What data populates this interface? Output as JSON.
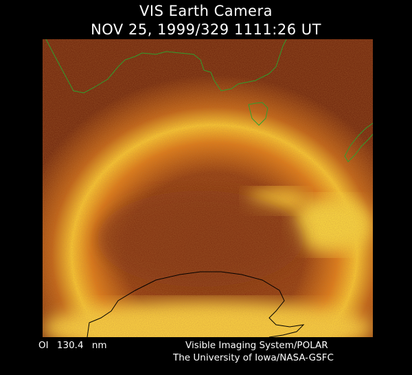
{
  "header": {
    "title": "VIS Earth Camera",
    "timestamp": "NOV 25, 1999/329 1111:26 UT"
  },
  "image": {
    "description_colors": {
      "dark": "#5a1a08",
      "mid": "#b8520f",
      "bright": "#ffe040",
      "coastline_north": "#2ea02e",
      "coastline_south": "#000000"
    }
  },
  "footer": {
    "band": "OI  130.4 nm",
    "credit_line1": "Visible Imaging System/POLAR",
    "credit_line2": "The University of Iowa/NASA-GSFC"
  }
}
